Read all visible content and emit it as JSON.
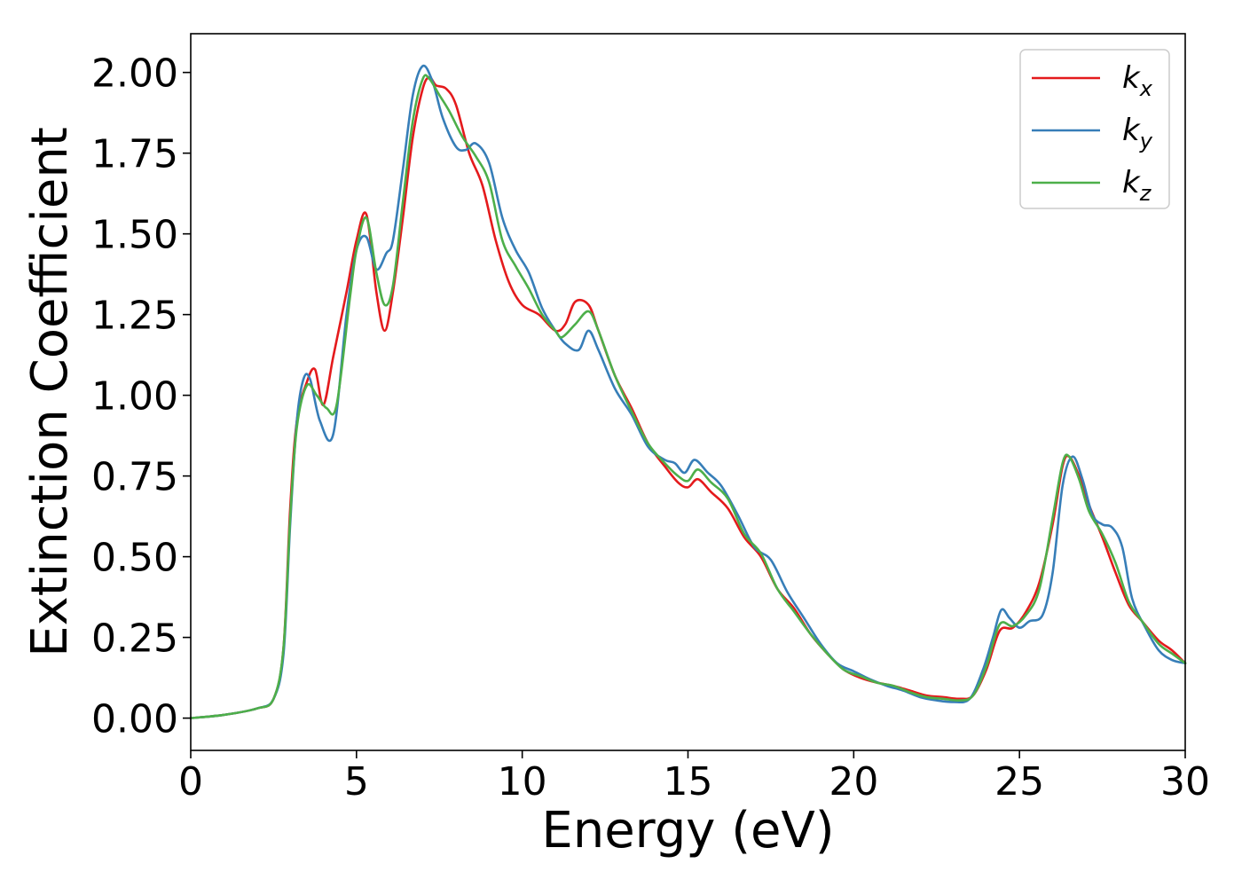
{
  "chart_data": {
    "type": "line",
    "xlabel": "Energy (eV)",
    "ylabel": "Extinction Coefficient",
    "xlim": [
      0,
      30
    ],
    "ylim": [
      -0.1,
      2.12
    ],
    "xticks": [
      0,
      5,
      10,
      15,
      20,
      25,
      30
    ],
    "yticks": [
      0.0,
      0.25,
      0.5,
      0.75,
      1.0,
      1.25,
      1.5,
      1.75,
      2.0
    ],
    "xtick_labels": [
      "0",
      "5",
      "10",
      "15",
      "20",
      "25",
      "30"
    ],
    "ytick_labels": [
      "0.00",
      "0.25",
      "0.50",
      "0.75",
      "1.00",
      "1.25",
      "1.50",
      "1.75",
      "2.00"
    ],
    "grid": false,
    "legend_position": "top-right",
    "series": [
      {
        "name": "k",
        "subscript": "x",
        "color": "#e41a1c",
        "x": [
          0,
          1,
          2,
          2.5,
          2.8,
          3.0,
          3.2,
          3.5,
          3.75,
          4.0,
          4.3,
          4.7,
          5.0,
          5.3,
          5.6,
          5.85,
          6.1,
          6.4,
          6.7,
          7.0,
          7.2,
          7.4,
          7.7,
          8.0,
          8.4,
          8.8,
          9.2,
          9.6,
          10.0,
          10.5,
          11.0,
          11.3,
          11.6,
          12.0,
          12.3,
          12.8,
          13.3,
          13.8,
          14.3,
          14.7,
          15.0,
          15.3,
          15.7,
          16.2,
          16.7,
          17.2,
          17.7,
          18.2,
          18.7,
          19.2,
          19.7,
          20.2,
          20.7,
          21.2,
          21.7,
          22.2,
          22.7,
          23.2,
          23.6,
          24.0,
          24.4,
          24.8,
          25.2,
          25.6,
          26.0,
          26.3,
          26.5,
          26.8,
          27.1,
          27.5,
          27.9,
          28.3,
          28.7,
          29.2,
          29.6,
          30.0
        ],
        "values": [
          0,
          0.01,
          0.03,
          0.06,
          0.22,
          0.65,
          0.92,
          1.04,
          1.08,
          0.97,
          1.12,
          1.32,
          1.48,
          1.56,
          1.32,
          1.2,
          1.32,
          1.55,
          1.8,
          1.95,
          1.985,
          1.96,
          1.95,
          1.9,
          1.75,
          1.65,
          1.48,
          1.35,
          1.28,
          1.25,
          1.2,
          1.22,
          1.29,
          1.28,
          1.2,
          1.06,
          0.96,
          0.85,
          0.78,
          0.73,
          0.715,
          0.74,
          0.7,
          0.65,
          0.56,
          0.5,
          0.4,
          0.34,
          0.26,
          0.2,
          0.15,
          0.125,
          0.11,
          0.1,
          0.085,
          0.07,
          0.065,
          0.06,
          0.07,
          0.15,
          0.27,
          0.28,
          0.33,
          0.42,
          0.6,
          0.78,
          0.81,
          0.75,
          0.66,
          0.56,
          0.45,
          0.35,
          0.3,
          0.24,
          0.21,
          0.17
        ]
      },
      {
        "name": "k",
        "subscript": "y",
        "color": "#377eb8",
        "x": [
          0,
          1,
          2,
          2.5,
          2.8,
          3.0,
          3.2,
          3.4,
          3.6,
          3.9,
          4.3,
          4.7,
          5.0,
          5.3,
          5.6,
          5.9,
          6.1,
          6.4,
          6.7,
          7.0,
          7.3,
          7.6,
          8.0,
          8.3,
          8.6,
          9.0,
          9.4,
          9.8,
          10.2,
          10.6,
          11.0,
          11.3,
          11.7,
          12.0,
          12.3,
          12.8,
          13.3,
          13.8,
          14.3,
          14.6,
          14.9,
          15.2,
          15.6,
          16.0,
          16.5,
          17.0,
          17.5,
          18.0,
          18.5,
          19.0,
          19.5,
          20.0,
          20.5,
          21.0,
          21.5,
          22.0,
          22.5,
          23.0,
          23.5,
          23.9,
          24.2,
          24.45,
          24.7,
          25.0,
          25.3,
          25.7,
          26.0,
          26.3,
          26.6,
          26.9,
          27.2,
          27.5,
          27.8,
          28.1,
          28.4,
          28.8,
          29.2,
          29.6,
          30.0
        ],
        "values": [
          0,
          0.01,
          0.03,
          0.06,
          0.2,
          0.6,
          0.92,
          1.05,
          1.05,
          0.92,
          0.88,
          1.25,
          1.45,
          1.49,
          1.39,
          1.44,
          1.48,
          1.7,
          1.93,
          2.02,
          1.97,
          1.86,
          1.77,
          1.76,
          1.78,
          1.72,
          1.55,
          1.45,
          1.38,
          1.27,
          1.2,
          1.16,
          1.14,
          1.2,
          1.14,
          1.02,
          0.94,
          0.84,
          0.8,
          0.79,
          0.76,
          0.8,
          0.76,
          0.72,
          0.63,
          0.53,
          0.49,
          0.39,
          0.31,
          0.23,
          0.17,
          0.145,
          0.12,
          0.1,
          0.085,
          0.065,
          0.055,
          0.05,
          0.06,
          0.15,
          0.25,
          0.335,
          0.31,
          0.28,
          0.3,
          0.32,
          0.45,
          0.72,
          0.81,
          0.74,
          0.63,
          0.6,
          0.59,
          0.53,
          0.37,
          0.28,
          0.21,
          0.18,
          0.17
        ]
      },
      {
        "name": "k",
        "subscript": "z",
        "color": "#4daf4a",
        "x": [
          0,
          1,
          2,
          2.5,
          2.8,
          3.0,
          3.2,
          3.5,
          3.8,
          4.1,
          4.4,
          4.8,
          5.0,
          5.3,
          5.6,
          5.85,
          6.1,
          6.4,
          6.7,
          7.0,
          7.2,
          7.5,
          7.8,
          8.2,
          8.6,
          9.0,
          9.4,
          9.8,
          10.2,
          10.6,
          11.0,
          11.2,
          11.6,
          12.0,
          12.3,
          12.8,
          13.3,
          13.8,
          14.3,
          14.7,
          15.0,
          15.3,
          15.7,
          16.2,
          16.7,
          17.2,
          17.7,
          18.2,
          18.7,
          19.2,
          19.7,
          20.2,
          20.7,
          21.2,
          21.7,
          22.2,
          22.7,
          23.2,
          23.6,
          24.0,
          24.4,
          24.8,
          25.2,
          25.6,
          26.0,
          26.3,
          26.5,
          26.8,
          27.1,
          27.5,
          27.9,
          28.3,
          28.7,
          29.2,
          29.6,
          30.0
        ],
        "values": [
          0,
          0.01,
          0.03,
          0.06,
          0.22,
          0.62,
          0.9,
          1.03,
          1.0,
          0.96,
          0.97,
          1.3,
          1.45,
          1.55,
          1.38,
          1.28,
          1.34,
          1.6,
          1.85,
          1.98,
          1.98,
          1.93,
          1.88,
          1.8,
          1.74,
          1.66,
          1.48,
          1.4,
          1.33,
          1.25,
          1.2,
          1.18,
          1.22,
          1.26,
          1.2,
          1.06,
          0.95,
          0.85,
          0.79,
          0.75,
          0.735,
          0.77,
          0.73,
          0.68,
          0.57,
          0.51,
          0.4,
          0.33,
          0.26,
          0.2,
          0.15,
          0.13,
          0.11,
          0.1,
          0.08,
          0.065,
          0.06,
          0.055,
          0.07,
          0.16,
          0.29,
          0.285,
          0.32,
          0.4,
          0.62,
          0.79,
          0.81,
          0.74,
          0.64,
          0.57,
          0.48,
          0.36,
          0.3,
          0.23,
          0.2,
          0.17
        ]
      }
    ]
  }
}
